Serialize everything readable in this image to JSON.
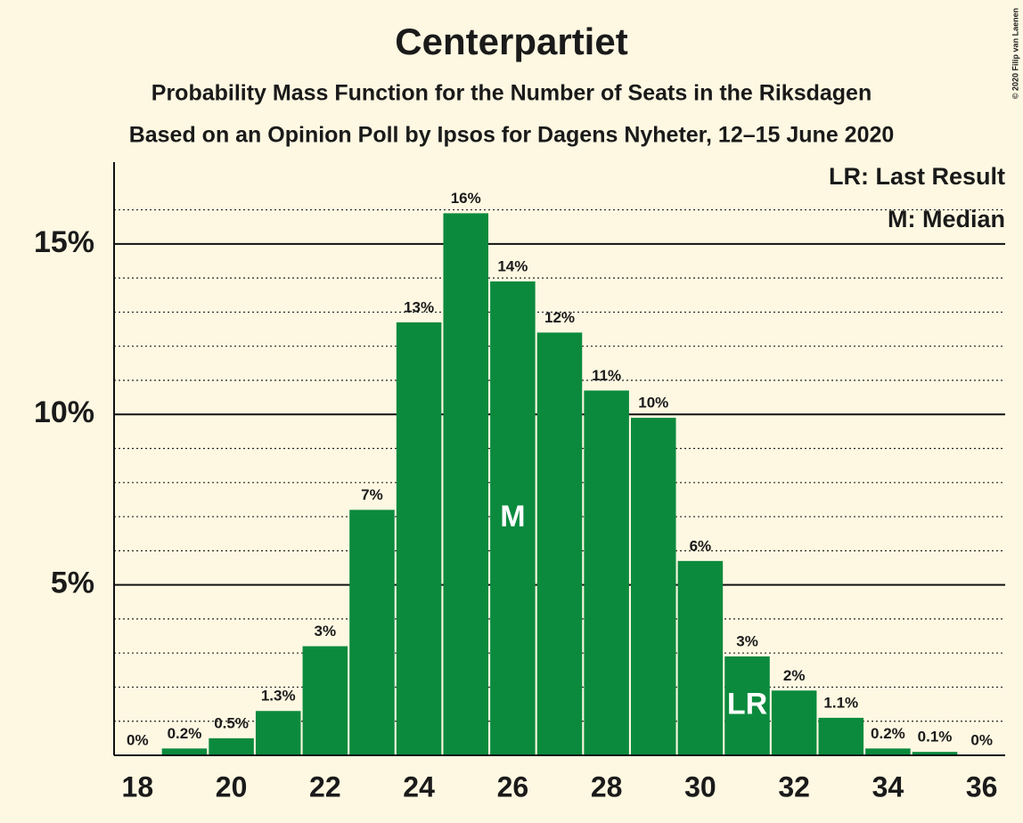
{
  "chart_data": {
    "type": "bar",
    "title": "Centerpartiet",
    "subtitle": "Probability Mass Function for the Number of Seats in the Riksdagen",
    "subtitle2": "Based on an Opinion Poll by Ipsos for Dagens Nyheter, 12–15 June 2020",
    "copyright": "© 2020 Filip van Laenen",
    "legend": [
      "LR: Last Result",
      "M: Median"
    ],
    "x": [
      18,
      19,
      20,
      21,
      22,
      23,
      24,
      25,
      26,
      27,
      28,
      29,
      30,
      31,
      32,
      33,
      34,
      35,
      36
    ],
    "values": [
      0,
      0.2,
      0.5,
      1.3,
      3.2,
      7.2,
      12.7,
      15.9,
      13.9,
      12.4,
      10.7,
      9.9,
      5.7,
      2.9,
      1.9,
      1.1,
      0.2,
      0.1,
      0
    ],
    "value_labels": [
      "0%",
      "0.2%",
      "0.5%",
      "1.3%",
      "3%",
      "7%",
      "13%",
      "16%",
      "14%",
      "12%",
      "11%",
      "10%",
      "6%",
      "3%",
      "2%",
      "1.1%",
      "0.2%",
      "0.1%",
      "0%"
    ],
    "color": "#0b8a3d",
    "markers": [
      {
        "x": 26,
        "label": "M"
      },
      {
        "x": 31,
        "label": "LR"
      }
    ],
    "xlim": [
      17.5,
      36.5
    ],
    "xticks": [
      18,
      20,
      22,
      24,
      26,
      28,
      30,
      32,
      34,
      36
    ],
    "ylim": [
      0,
      17.4
    ],
    "yticks": [
      {
        "value": 5,
        "label": "5%"
      },
      {
        "value": 10,
        "label": "10%"
      },
      {
        "value": 15,
        "label": "15%"
      }
    ],
    "minor_yticks": [
      1,
      2,
      3,
      4,
      6,
      7,
      8,
      9,
      11,
      12,
      13,
      14,
      16
    ],
    "grid": true
  }
}
